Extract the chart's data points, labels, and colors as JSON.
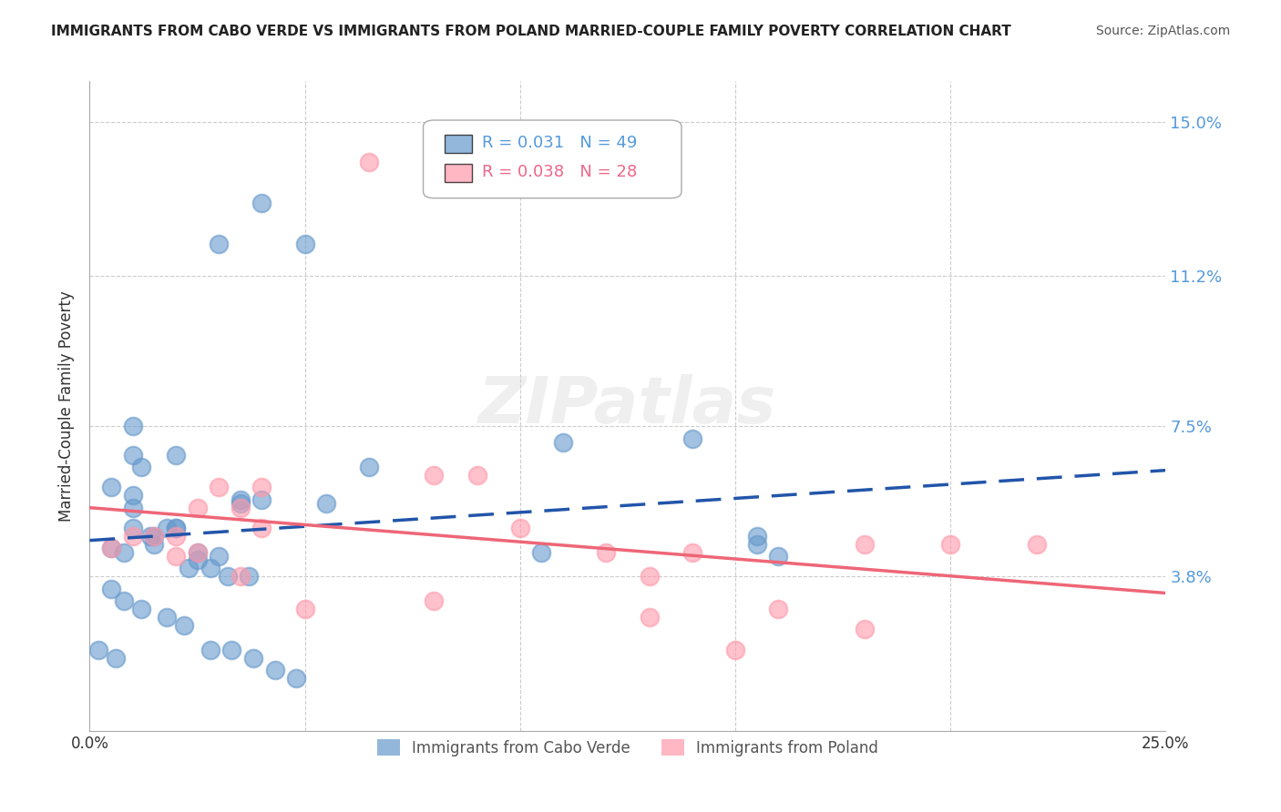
{
  "title": "IMMIGRANTS FROM CABO VERDE VS IMMIGRANTS FROM POLAND MARRIED-COUPLE FAMILY POVERTY CORRELATION CHART",
  "source": "Source: ZipAtlas.com",
  "ylabel": "Married-Couple Family Poverty",
  "xlabel_ticks": [
    "0.0%",
    "25.0%"
  ],
  "ytick_labels": [
    "15.0%",
    "11.2%",
    "7.5%",
    "3.8%"
  ],
  "ytick_values": [
    0.15,
    0.112,
    0.075,
    0.038
  ],
  "xlim": [
    0.0,
    0.25
  ],
  "ylim": [
    0.0,
    0.16
  ],
  "legend1_R": "0.031",
  "legend1_N": "49",
  "legend2_R": "0.038",
  "legend2_N": "28",
  "color_blue": "#6699CC",
  "color_pink": "#FF99AA",
  "color_blue_line": "#2255AA",
  "color_pink_line": "#EE6677",
  "watermark": "ZIPatlas",
  "cabo_verde_x": [
    0.02,
    0.04,
    0.03,
    0.05,
    0.01,
    0.005,
    0.01,
    0.015,
    0.02,
    0.01,
    0.005,
    0.008,
    0.015,
    0.025,
    0.035,
    0.055,
    0.01,
    0.02,
    0.025,
    0.03,
    0.035,
    0.04,
    0.065,
    0.005,
    0.008,
    0.012,
    0.018,
    0.022,
    0.028,
    0.033,
    0.038,
    0.043,
    0.048,
    0.002,
    0.006,
    0.01,
    0.014,
    0.018,
    0.023,
    0.028,
    0.032,
    0.037,
    0.012,
    0.155,
    0.105,
    0.155,
    0.11,
    0.14,
    0.16
  ],
  "cabo_verde_y": [
    0.05,
    0.13,
    0.12,
    0.12,
    0.075,
    0.06,
    0.055,
    0.048,
    0.05,
    0.058,
    0.045,
    0.044,
    0.046,
    0.044,
    0.056,
    0.056,
    0.068,
    0.068,
    0.042,
    0.043,
    0.057,
    0.057,
    0.065,
    0.035,
    0.032,
    0.03,
    0.028,
    0.026,
    0.02,
    0.02,
    0.018,
    0.015,
    0.013,
    0.02,
    0.018,
    0.05,
    0.048,
    0.05,
    0.04,
    0.04,
    0.038,
    0.038,
    0.065,
    0.046,
    0.044,
    0.048,
    0.071,
    0.072,
    0.043
  ],
  "poland_x": [
    0.005,
    0.01,
    0.015,
    0.02,
    0.025,
    0.03,
    0.035,
    0.04,
    0.065,
    0.08,
    0.09,
    0.12,
    0.14,
    0.16,
    0.18,
    0.1,
    0.13,
    0.15,
    0.2,
    0.22,
    0.08,
    0.04,
    0.02,
    0.025,
    0.035,
    0.05,
    0.13,
    0.18
  ],
  "poland_y": [
    0.045,
    0.048,
    0.048,
    0.043,
    0.055,
    0.06,
    0.055,
    0.06,
    0.14,
    0.063,
    0.063,
    0.044,
    0.044,
    0.03,
    0.025,
    0.05,
    0.038,
    0.02,
    0.046,
    0.046,
    0.032,
    0.05,
    0.048,
    0.044,
    0.038,
    0.03,
    0.028,
    0.046
  ]
}
